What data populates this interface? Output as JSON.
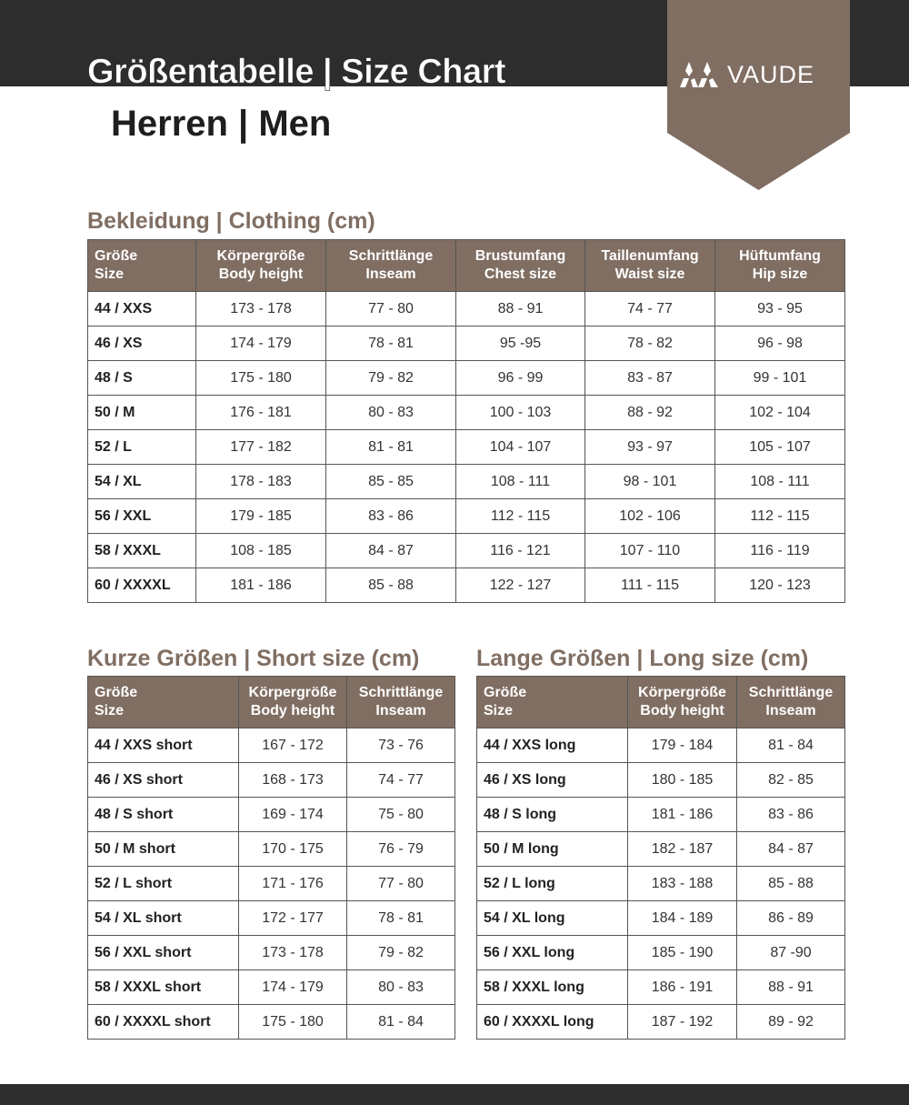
{
  "header": {
    "title": "Größentabelle | Size Chart",
    "subtitle": "Herren | Men",
    "brand": "VAUDE",
    "brand_icon": "vaude-mountain-logo"
  },
  "colors": {
    "accent": "#806e62",
    "dark": "#2d2d2d"
  },
  "clothing": {
    "title": "Bekleidung | Clothing (cm)",
    "headers": [
      [
        "Größe",
        "Size"
      ],
      [
        "Körpergröße",
        "Body height"
      ],
      [
        "Schrittlänge",
        "Inseam"
      ],
      [
        "Brustumfang",
        "Chest size"
      ],
      [
        "Taillenumfang",
        "Waist size"
      ],
      [
        "Hüftumfang",
        "Hip size"
      ]
    ],
    "rows": [
      [
        "44 / XXS",
        "173 - 178",
        "77 - 80",
        "88 - 91",
        "74 - 77",
        "93 - 95"
      ],
      [
        "46 / XS",
        "174 - 179",
        "78 - 81",
        "95 -95",
        "78 - 82",
        "96 - 98"
      ],
      [
        "48 / S",
        "175 - 180",
        "79 - 82",
        "96 - 99",
        "83 - 87",
        "99 - 101"
      ],
      [
        "50 / M",
        "176 - 181",
        "80 - 83",
        "100 - 103",
        "88 - 92",
        "102 - 104"
      ],
      [
        "52 / L",
        "177 - 182",
        "81 - 81",
        "104 - 107",
        "93 - 97",
        "105 - 107"
      ],
      [
        "54 / XL",
        "178 - 183",
        "85 - 85",
        "108 - 111",
        "98 - 101",
        "108 - 111"
      ],
      [
        "56 / XXL",
        "179 - 185",
        "83 - 86",
        "112 - 115",
        "102 - 106",
        "112 - 115"
      ],
      [
        "58 / XXXL",
        "108 - 185",
        "84 - 87",
        "116 - 121",
        "107 - 110",
        "116 - 119"
      ],
      [
        "60 / XXXXL",
        "181 - 186",
        "85 - 88",
        "122 - 127",
        "111 - 115",
        "120 - 123"
      ]
    ]
  },
  "short": {
    "title": "Kurze Größen | Short size (cm)",
    "headers": [
      [
        "Größe",
        "Size"
      ],
      [
        "Körpergröße",
        "Body height"
      ],
      [
        "Schrittlänge",
        "Inseam"
      ]
    ],
    "rows": [
      [
        "44 / XXS short",
        "167 - 172",
        "73 - 76"
      ],
      [
        "46 / XS short",
        "168 - 173",
        "74 - 77"
      ],
      [
        "48 / S short",
        "169 - 174",
        "75 - 80"
      ],
      [
        "50 / M short",
        "170 - 175",
        "76 - 79"
      ],
      [
        "52 / L short",
        "171 - 176",
        "77 - 80"
      ],
      [
        "54 / XL short",
        "172 - 177",
        "78 - 81"
      ],
      [
        "56 / XXL short",
        "173 - 178",
        "79 - 82"
      ],
      [
        "58 / XXXL short",
        "174 - 179",
        "80 - 83"
      ],
      [
        "60 / XXXXL short",
        "175 - 180",
        "81 - 84"
      ]
    ]
  },
  "long": {
    "title": "Lange Größen | Long size (cm)",
    "headers": [
      [
        "Größe",
        "Size"
      ],
      [
        "Körpergröße",
        "Body height"
      ],
      [
        "Schrittlänge",
        "Inseam"
      ]
    ],
    "rows": [
      [
        "44 / XXS long",
        "179 - 184",
        "81 - 84"
      ],
      [
        "46 / XS long",
        "180 - 185",
        "82 - 85"
      ],
      [
        "48 / S long",
        "181 - 186",
        "83 - 86"
      ],
      [
        "50 / M long",
        "182 - 187",
        "84 - 87"
      ],
      [
        "52 / L long",
        "183 - 188",
        "85 - 88"
      ],
      [
        "54 / XL long",
        "184 - 189",
        "86 - 89"
      ],
      [
        "56 / XXL long",
        "185 - 190",
        "87  -90"
      ],
      [
        "58 / XXXL long",
        "186 - 191",
        "88 - 91"
      ],
      [
        "60 / XXXXL long",
        "187 - 192",
        "89 - 92"
      ]
    ]
  }
}
